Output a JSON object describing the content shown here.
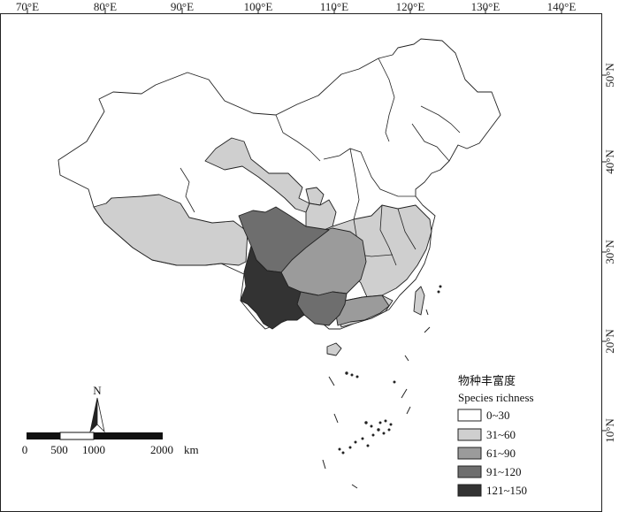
{
  "map": {
    "top_ticks": [
      "70°E",
      "80°E",
      "90°E",
      "100°E",
      "110°E",
      "120°E",
      "130°E",
      "140°E"
    ],
    "right_ticks": [
      "50°N",
      "40°N",
      "30°N",
      "20°N",
      "10°N"
    ]
  },
  "north_arrow": {
    "label": "N"
  },
  "scale_bar": {
    "labels": [
      "0",
      "500",
      "1000",
      "2000"
    ],
    "unit": "km"
  },
  "legend": {
    "title_cn": "物种丰富度",
    "title_en": "Species richness",
    "classes": [
      {
        "label": "0~30",
        "color": "#ffffff"
      },
      {
        "label": "31~60",
        "color": "#cfcfcf"
      },
      {
        "label": "61~90",
        "color": "#9b9b9b"
      },
      {
        "label": "91~120",
        "color": "#6e6e6e"
      },
      {
        "label": "121~150",
        "color": "#333333"
      }
    ]
  }
}
